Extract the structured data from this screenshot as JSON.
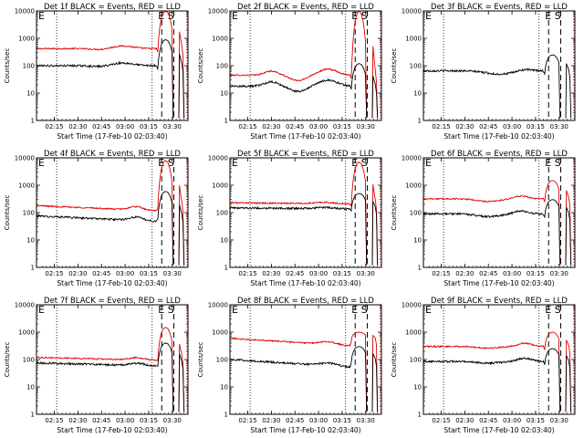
{
  "colors": {
    "events": "#000000",
    "lld": "#e00000",
    "background": "#ffffff"
  },
  "shared": {
    "x_tick_labels": [
      "02:15",
      "02:30",
      "02:45",
      "03:00",
      "03:15",
      "03:30"
    ],
    "y_tick_labels": [
      "1",
      "10",
      "100",
      "1000",
      "10000"
    ],
    "ylabel": "Counts/sec",
    "xlabel": "Start Time (17-Feb-10 02:03:40)",
    "left_marker": "E",
    "right_marker": "E S"
  },
  "chart_data": [
    {
      "type": "line",
      "title": "Det 1f BLACK = Events, RED = LLD",
      "x_range": [
        "02:03:40",
        "03:40"
      ],
      "ylim": [
        1,
        10000
      ],
      "yscale": "log",
      "series": [
        {
          "color": "red",
          "baseline": 420,
          "flare_peak": 10000
        },
        {
          "color": "black",
          "baseline": 100,
          "flare_peak": 900
        }
      ]
    },
    {
      "type": "line",
      "title": "Det 2f BLACK = Events, RED = LLD",
      "x_range": [
        "02:03:40",
        "03:40"
      ],
      "ylim": [
        1,
        10000
      ],
      "yscale": "log",
      "series": [
        {
          "color": "red",
          "baseline": 45,
          "flare_peak": 10000
        },
        {
          "color": "black",
          "baseline": 18,
          "flare_peak": 120
        }
      ]
    },
    {
      "type": "line",
      "title": "Det 3f BLACK = Events, RED = LLD",
      "x_range": [
        "02:03:40",
        "03:40"
      ],
      "ylim": [
        1,
        10000
      ],
      "yscale": "log",
      "series": [
        {
          "color": "black",
          "baseline": 65,
          "flare_peak": 250
        }
      ]
    },
    {
      "type": "line",
      "title": "Det 4f BLACK = Events, RED = LLD",
      "x_range": [
        "02:03:40",
        "03:40"
      ],
      "ylim": [
        1,
        10000
      ],
      "yscale": "log",
      "series": [
        {
          "color": "red",
          "baseline": 180,
          "flare_peak": 8000
        },
        {
          "color": "black",
          "baseline": 75,
          "flare_peak": 600
        }
      ]
    },
    {
      "type": "line",
      "title": "Det 5f BLACK = Events, RED = LLD",
      "x_range": [
        "02:03:40",
        "03:40"
      ],
      "ylim": [
        1,
        10000
      ],
      "yscale": "log",
      "series": [
        {
          "color": "red",
          "baseline": 230,
          "flare_peak": 7000
        },
        {
          "color": "black",
          "baseline": 150,
          "flare_peak": 500
        }
      ]
    },
    {
      "type": "line",
      "title": "Det 6f BLACK = Events, RED = LLD",
      "x_range": [
        "02:03:40",
        "03:40"
      ],
      "ylim": [
        1,
        10000
      ],
      "yscale": "log",
      "series": [
        {
          "color": "red",
          "baseline": 320,
          "flare_peak": 1500
        },
        {
          "color": "black",
          "baseline": 90,
          "flare_peak": 300
        }
      ]
    },
    {
      "type": "line",
      "title": "Det 7f BLACK = Events, RED = LLD",
      "x_range": [
        "02:03:40",
        "03:40"
      ],
      "ylim": [
        1,
        10000
      ],
      "yscale": "log",
      "series": [
        {
          "color": "red",
          "baseline": 120,
          "flare_peak": 1500
        },
        {
          "color": "black",
          "baseline": 75,
          "flare_peak": 400
        }
      ]
    },
    {
      "type": "line",
      "title": "Det 8f BLACK = Events, RED = LLD",
      "x_range": [
        "02:03:40",
        "03:40"
      ],
      "ylim": [
        1,
        10000
      ],
      "yscale": "log",
      "series": [
        {
          "color": "red",
          "baseline": 600,
          "flare_peak": 1000
        },
        {
          "color": "black",
          "baseline": 100,
          "flare_peak": 300
        }
      ]
    },
    {
      "type": "line",
      "title": "Det 9f BLACK = Events, RED = LLD",
      "x_range": [
        "02:03:40",
        "03:40"
      ],
      "ylim": [
        1,
        10000
      ],
      "yscale": "log",
      "series": [
        {
          "color": "red",
          "baseline": 300,
          "flare_peak": 1000
        },
        {
          "color": "black",
          "baseline": 85,
          "flare_peak": 250
        }
      ]
    }
  ]
}
